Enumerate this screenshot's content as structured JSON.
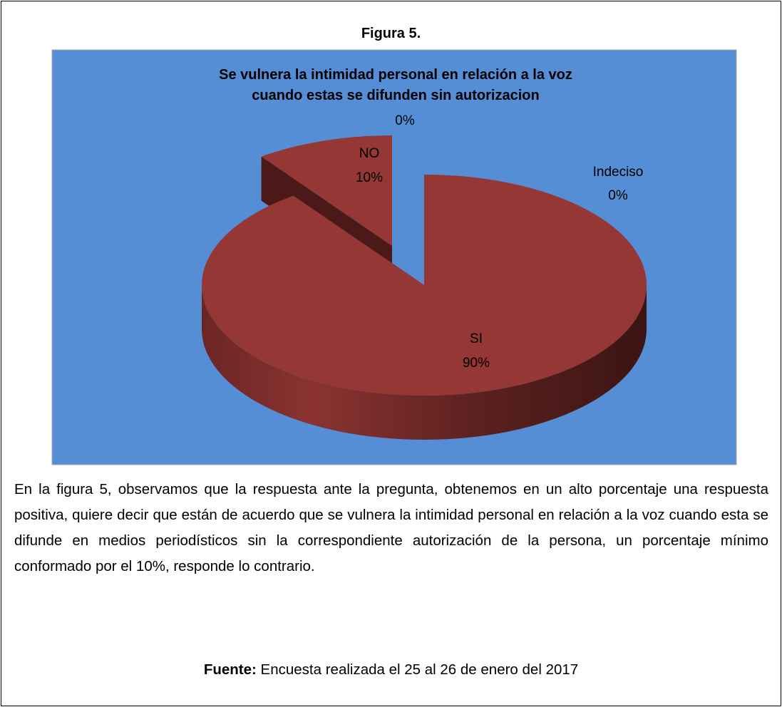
{
  "figure_label": "Figura 5.",
  "chart_data": {
    "type": "pie",
    "title": [
      "Se vulnera la intimidad personal en relación a la voz",
      "cuando estas se difunden sin autorizacion"
    ],
    "categories": [
      "SI",
      "NO",
      null,
      "Indeciso"
    ],
    "values": [
      90,
      10,
      0,
      0
    ],
    "value_labels": [
      "90%",
      "10%",
      "0%",
      "0%"
    ],
    "color": "#953735",
    "background": "#558ed5"
  },
  "paragraph": "En la figura 5, observamos que la respuesta ante la pregunta, obtenemos en un alto porcentaje una respuesta positiva, quiere decir que están de acuerdo que se vulnera la intimidad personal en relación a la voz cuando esta se difunde en medios periodísticos sin la correspondiente autorización de la persona, un porcentaje mínimo conformado por el 10%, responde lo contrario.",
  "source": {
    "label": "Fuente:",
    "text": "Encuesta realizada el 25 al 26 de enero del 2017"
  }
}
